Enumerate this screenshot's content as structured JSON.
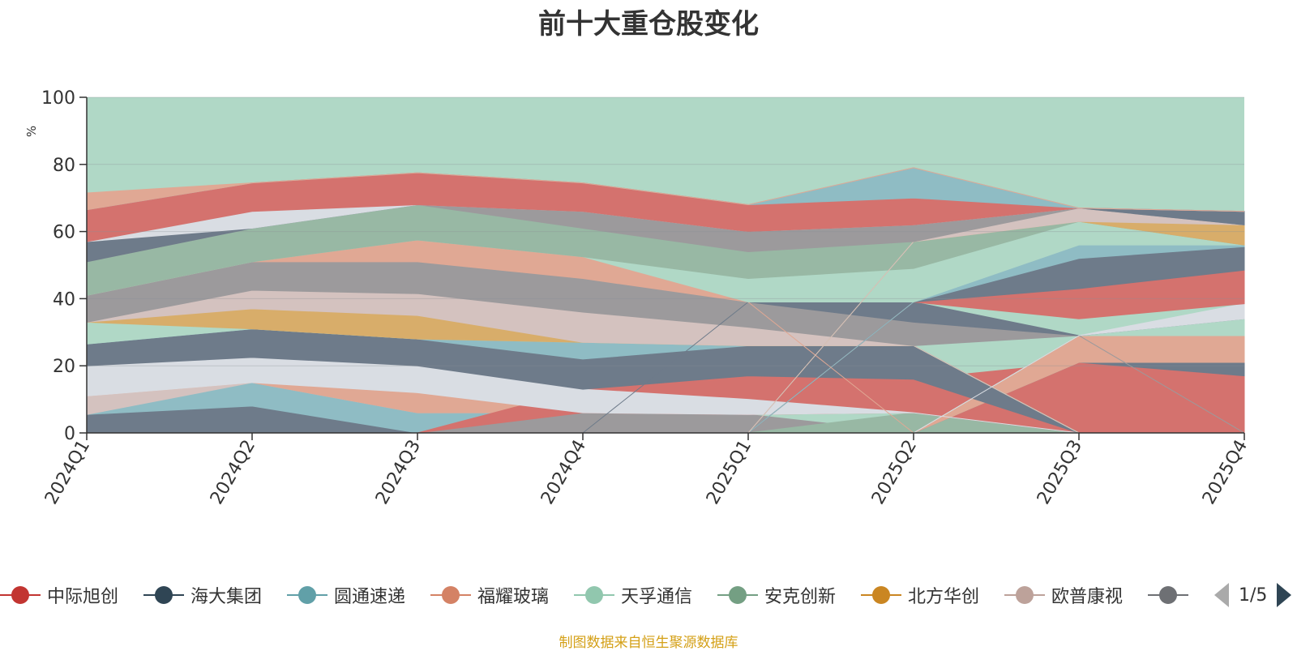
{
  "chart_data": {
    "type": "area",
    "stacked": true,
    "title": "前十大重仓股变化",
    "ylabel": "%",
    "xlabel": "",
    "ylim": [
      0,
      100
    ],
    "yticks": [
      0,
      20,
      40,
      60,
      80,
      100
    ],
    "categories": [
      "2024Q1",
      "2024Q2",
      "2024Q3",
      "2024Q4",
      "2025Q1",
      "2025Q2",
      "2025Q3",
      "2025Q4"
    ],
    "band_layers": [
      {
        "name": "layer-1",
        "color": "#6e7b8a",
        "lower": [
          0,
          0,
          0,
          0,
          0,
          0,
          0,
          0
        ],
        "upper": [
          5.5,
          8,
          0,
          6,
          0,
          0,
          0,
          0
        ]
      },
      {
        "name": "layer-2",
        "color": "#8fbcc4",
        "lower": [
          5.5,
          8,
          0,
          6,
          0,
          0,
          0,
          0
        ],
        "upper": [
          5.5,
          15,
          6,
          6,
          0,
          0,
          0,
          0
        ]
      },
      {
        "name": "layer-3",
        "color": "#d4726e",
        "lower": [
          0,
          0,
          0,
          0,
          0,
          0,
          0,
          0
        ],
        "upper": [
          0,
          0,
          0,
          0,
          0,
          0,
          9,
          9
        ]
      },
      {
        "name": "layer-4",
        "color": "#b0d8c6",
        "lower": [
          0,
          0,
          0,
          0,
          0,
          0,
          9,
          9
        ],
        "upper": [
          0,
          0,
          0,
          0,
          0,
          0,
          17,
          17
        ]
      },
      {
        "name": "layer-5",
        "color": "#d8ad6a",
        "lower": [
          0,
          0,
          0,
          0,
          0,
          0,
          17,
          17
        ],
        "upper": [
          0,
          0,
          0,
          0,
          0,
          0,
          21,
          17
        ]
      },
      {
        "name": "layer-6",
        "color": "#d4c2bf",
        "lower": [
          5.5,
          15,
          6,
          6,
          0,
          0,
          0,
          0
        ],
        "upper": [
          11,
          15,
          12,
          6,
          0,
          0,
          0,
          0
        ]
      },
      {
        "name": "layer-7",
        "color": "#e0a894",
        "lower": [
          11,
          15,
          6,
          6,
          0,
          0,
          0,
          0
        ],
        "upper": [
          11,
          15,
          12,
          6,
          0,
          0,
          0,
          0
        ]
      },
      {
        "name": "layer-8",
        "color": "#9c9a9c",
        "lower": [
          0,
          0,
          0,
          0,
          0,
          0,
          0,
          0
        ],
        "upper": [
          0,
          0,
          0,
          6,
          5.5,
          0,
          0,
          0
        ]
      },
      {
        "name": "layer-9",
        "color": "#98b8a4",
        "lower": [
          0,
          0,
          0,
          0,
          0,
          0,
          0,
          0
        ],
        "upper": [
          0,
          0,
          0,
          0,
          0,
          6,
          0,
          0
        ]
      },
      {
        "name": "layer-10",
        "color": "#d4726e",
        "lower": [
          0,
          0,
          0,
          6,
          5.5,
          6,
          0,
          0
        ],
        "upper": [
          0,
          0,
          0,
          13,
          17,
          16,
          21,
          17
        ]
      },
      {
        "name": "layer-11",
        "color": "#6e7b8a",
        "lower": [
          0,
          0,
          0,
          0,
          0,
          0,
          21,
          17
        ],
        "upper": [
          0,
          0,
          0,
          0,
          0,
          0,
          21,
          21
        ]
      },
      {
        "name": "layer-12",
        "color": "#e0a894",
        "lower": [
          0,
          0,
          0,
          0,
          0,
          0,
          21,
          21
        ],
        "upper": [
          0,
          0,
          0,
          0,
          0,
          0,
          29,
          29
        ]
      },
      {
        "name": "layer-13",
        "color": "#b0d8c6",
        "lower": [
          0,
          0,
          0,
          0,
          0,
          0,
          29,
          29
        ],
        "upper": [
          0,
          0,
          0,
          0,
          0,
          0,
          29,
          34
        ]
      },
      {
        "name": "layer-14",
        "color": "#d9dde3",
        "lower": [
          11,
          15,
          12,
          6,
          5.5,
          6,
          0,
          0
        ],
        "upper": [
          20,
          22.5,
          20,
          13,
          10,
          6,
          0,
          0
        ]
      },
      {
        "name": "layer-15",
        "color": "#6e7b8a",
        "lower": [
          20,
          22.5,
          20,
          13,
          17,
          16,
          0,
          0
        ],
        "upper": [
          26.5,
          31,
          28,
          22,
          26,
          26,
          0,
          0
        ]
      },
      {
        "name": "layer-16",
        "color": "#8fbcc4",
        "lower": [
          26.5,
          31,
          28,
          22,
          26,
          26,
          0,
          0
        ],
        "upper": [
          26.5,
          31,
          28,
          27,
          26,
          26,
          0,
          0
        ]
      },
      {
        "name": "layer-17",
        "color": "#b0d8c6",
        "lower": [
          26.5,
          31,
          28,
          27,
          26,
          26,
          0,
          0
        ],
        "upper": [
          33,
          31,
          28,
          27,
          26,
          26,
          0,
          0
        ]
      },
      {
        "name": "layer-18",
        "color": "#d8ad6a",
        "lower": [
          33,
          31,
          28,
          27,
          26,
          26,
          0,
          0
        ],
        "upper": [
          33,
          37,
          35,
          27,
          26,
          26,
          0,
          0
        ]
      },
      {
        "name": "layer-19",
        "color": "#d4c2bf",
        "lower": [
          33,
          37,
          35,
          27,
          26,
          26,
          0,
          0
        ],
        "upper": [
          33,
          42.5,
          41.5,
          36,
          31.5,
          26,
          0,
          0
        ]
      },
      {
        "name": "layer-20",
        "color": "#9c9a9c",
        "lower": [
          33,
          42.5,
          41.5,
          36,
          31.5,
          26,
          29,
          0
        ],
        "upper": [
          41,
          51,
          51,
          46,
          39,
          33,
          29,
          0
        ]
      },
      {
        "name": "layer-21",
        "color": "#6e7b8a",
        "lower": [
          0,
          0,
          0,
          0,
          39,
          33,
          29,
          34
        ],
        "upper": [
          0,
          0,
          0,
          0,
          39,
          39,
          29,
          34
        ]
      },
      {
        "name": "layer-22",
        "color": "#d9dde3",
        "lower": [
          0,
          0,
          0,
          0,
          0,
          0,
          29,
          34
        ],
        "upper": [
          0,
          0,
          0,
          0,
          0,
          0,
          29,
          38.5
        ]
      },
      {
        "name": "layer-23",
        "color": "#d4726e",
        "lower": [
          0,
          0,
          0,
          0,
          0,
          39,
          34,
          38.5
        ],
        "upper": [
          0,
          0,
          0,
          0,
          0,
          39,
          43,
          48.5
        ]
      },
      {
        "name": "layer-24",
        "color": "#6e7b8a",
        "lower": [
          0,
          0,
          0,
          0,
          0,
          39,
          43,
          48.5
        ],
        "upper": [
          0,
          0,
          0,
          0,
          0,
          39,
          52,
          55.5
        ]
      },
      {
        "name": "layer-25",
        "color": "#8fbcc4",
        "lower": [
          0,
          0,
          0,
          0,
          0,
          39,
          52,
          55.5
        ],
        "upper": [
          0,
          0,
          0,
          0,
          0,
          39,
          56,
          56
        ]
      },
      {
        "name": "layer-26",
        "color": "#e0a894",
        "lower": [
          41,
          51,
          51,
          46,
          39,
          0,
          0,
          0
        ],
        "upper": [
          41,
          51,
          57.5,
          52.5,
          39,
          0,
          0,
          0
        ]
      },
      {
        "name": "layer-27",
        "color": "#b0d8c6",
        "lower": [
          41,
          51,
          57.5,
          52.5,
          39,
          39,
          56,
          56
        ],
        "upper": [
          41,
          51,
          57.5,
          52.5,
          46,
          49,
          63,
          56
        ]
      },
      {
        "name": "layer-28",
        "color": "#98b8a4",
        "lower": [
          41,
          51,
          57.5,
          52.5,
          46,
          49,
          63,
          56
        ],
        "upper": [
          51,
          61,
          68,
          61,
          54,
          57,
          63,
          56
        ]
      },
      {
        "name": "layer-29",
        "color": "#d8ad6a",
        "lower": [
          0,
          0,
          0,
          0,
          0,
          57,
          63,
          56
        ],
        "upper": [
          0,
          0,
          0,
          0,
          0,
          57,
          63,
          62
        ]
      },
      {
        "name": "layer-30",
        "color": "#d4c2bf",
        "lower": [
          0,
          0,
          0,
          0,
          0,
          57,
          63,
          62
        ],
        "upper": [
          0,
          0,
          0,
          0,
          0,
          57,
          67,
          62
        ]
      },
      {
        "name": "layer-31",
        "color": "#9c9a9c",
        "lower": [
          51,
          61,
          68,
          61,
          54,
          57,
          67,
          62
        ],
        "upper": [
          51,
          61,
          68,
          66,
          60,
          62,
          67,
          62
        ]
      },
      {
        "name": "layer-32",
        "color": "#6e7b8a",
        "lower": [
          51,
          61,
          68,
          66,
          60,
          62,
          67,
          62
        ],
        "upper": [
          57,
          61,
          68,
          66,
          60,
          62,
          67,
          66
        ]
      },
      {
        "name": "layer-33",
        "color": "#d9dde3",
        "lower": [
          57,
          61,
          68,
          66,
          60,
          62,
          67,
          66
        ],
        "upper": [
          57,
          66,
          68,
          66,
          60,
          62,
          67,
          66
        ]
      },
      {
        "name": "layer-34",
        "color": "#d4726e",
        "lower": [
          57,
          66,
          68,
          66,
          60,
          62,
          67,
          66
        ],
        "upper": [
          66.5,
          74.5,
          77.5,
          74.5,
          68,
          70,
          67,
          66
        ]
      },
      {
        "name": "layer-35",
        "color": "#8fbcc4",
        "lower": [
          66.5,
          74.5,
          77.5,
          74.5,
          68,
          70,
          67,
          66
        ],
        "upper": [
          66.5,
          74.5,
          77.5,
          74.5,
          68,
          79,
          67,
          66
        ]
      },
      {
        "name": "layer-36",
        "color": "#e0a894",
        "lower": [
          66.5,
          74.5,
          77.5,
          74.5,
          68,
          79,
          67,
          66
        ],
        "upper": [
          71.5,
          74.5,
          77.5,
          74.5,
          68,
          79,
          67,
          66
        ]
      }
    ],
    "legend": [
      {
        "name": "中际旭创",
        "color": "#c23531"
      },
      {
        "name": "海大集团",
        "color": "#2f4554"
      },
      {
        "name": "圆通速递",
        "color": "#61a0a8"
      },
      {
        "name": "福耀玻璃",
        "color": "#d48265"
      },
      {
        "name": "天孚通信",
        "color": "#91c7ae"
      },
      {
        "name": "安克创新",
        "color": "#749f83"
      },
      {
        "name": "北方华创",
        "color": "#ca8622"
      },
      {
        "name": "欧普康视",
        "color": "#bda29a"
      },
      {
        "name": "",
        "color": "#6e7074"
      }
    ],
    "legend_page": "1/5",
    "background_fill": "#b0d8c6",
    "source_note": "制图数据来自恒生聚源数据库"
  }
}
